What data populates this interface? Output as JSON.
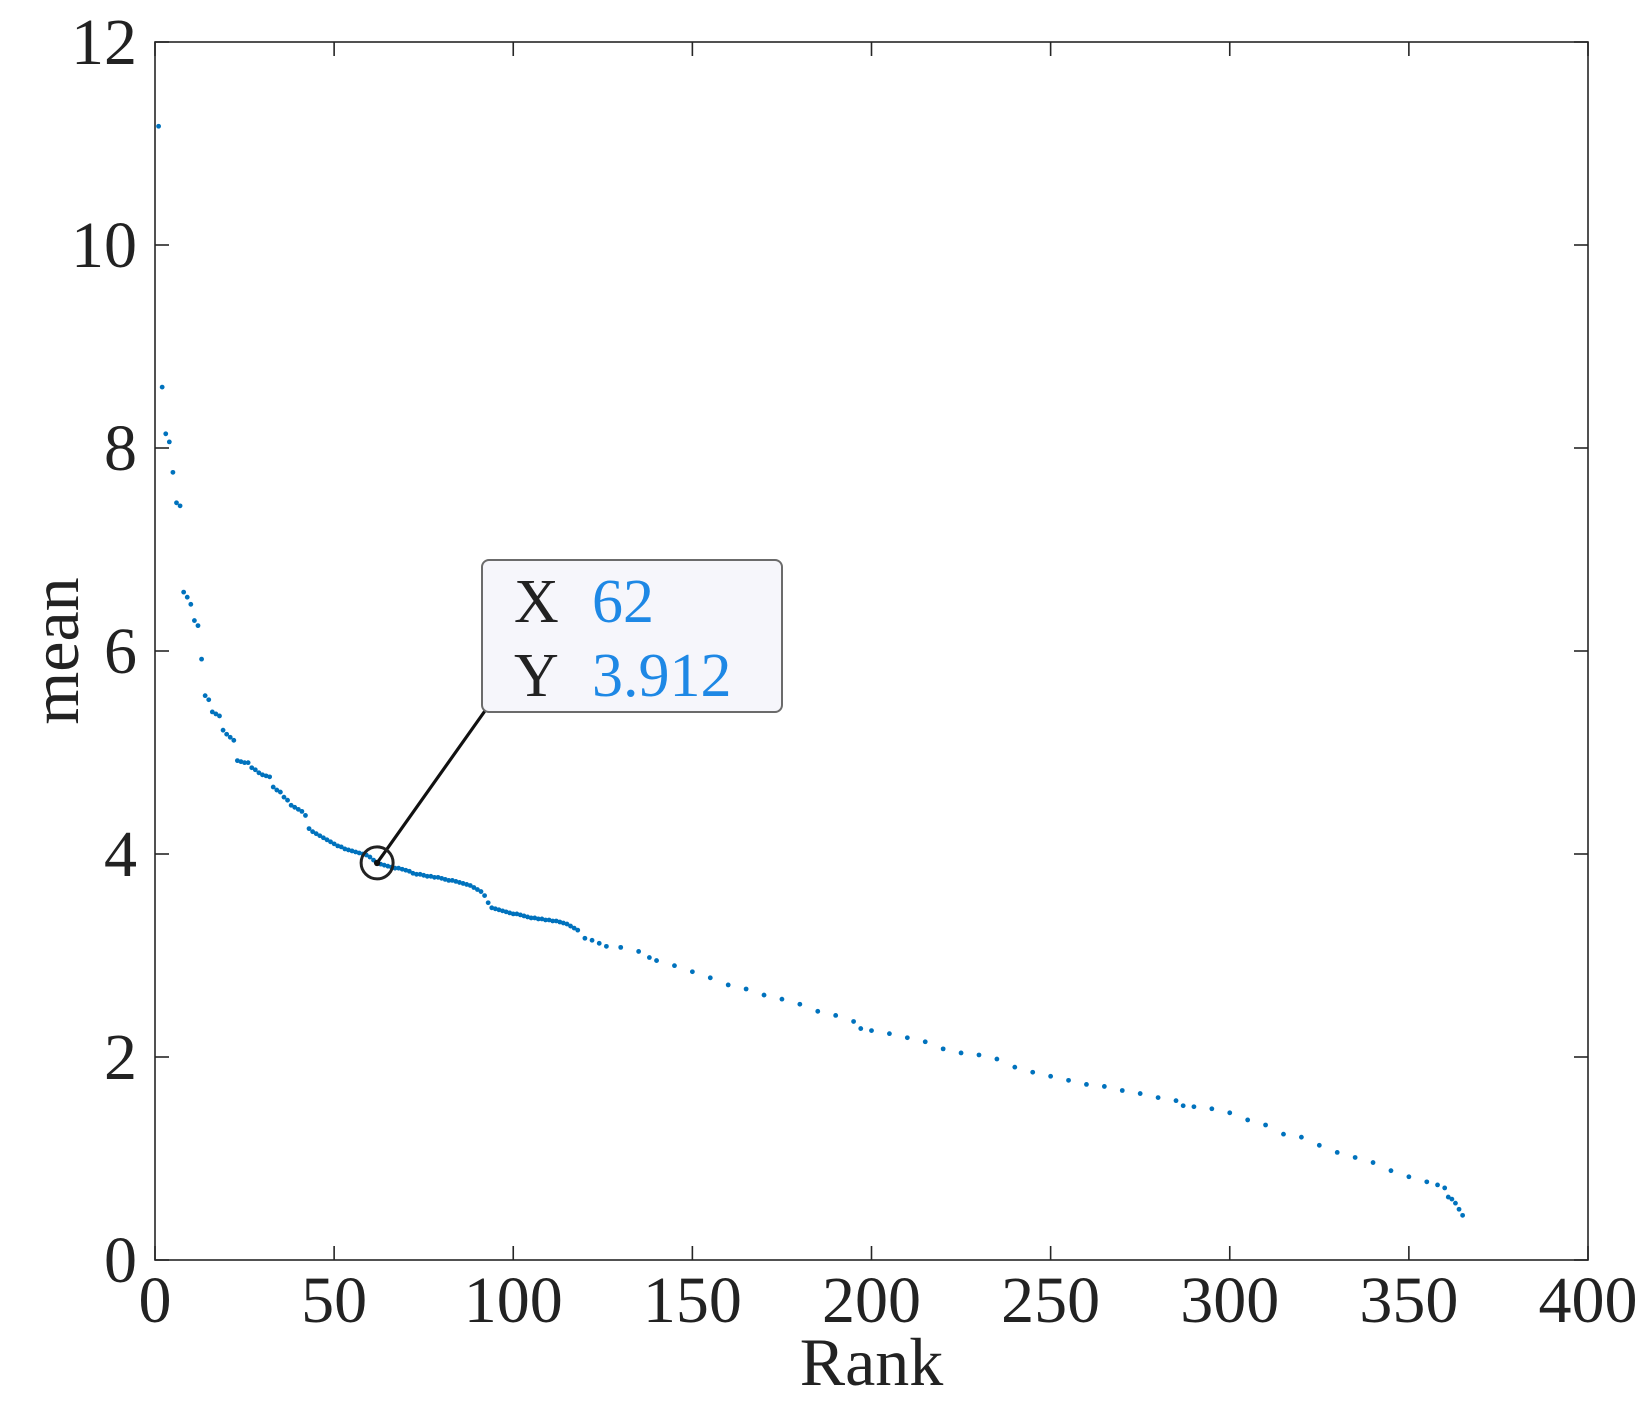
{
  "chart_data": {
    "type": "scatter",
    "title": "",
    "xlabel": "Rank",
    "ylabel": "mean",
    "xlim": [
      0,
      400
    ],
    "ylim": [
      0,
      12
    ],
    "xticks": [
      "0",
      "50",
      "100",
      "150",
      "200",
      "250",
      "300",
      "350",
      "400"
    ],
    "yticks": [
      "0",
      "2",
      "4",
      "6",
      "8",
      "10",
      "12"
    ],
    "grid": false,
    "point_color": "#0072BD",
    "series": [
      {
        "points": [
          [
            1,
            11.17
          ],
          [
            2,
            8.6
          ],
          [
            3,
            8.14
          ],
          [
            4,
            8.06
          ],
          [
            5,
            7.76
          ],
          [
            6,
            7.46
          ],
          [
            7,
            7.43
          ],
          [
            8,
            6.58
          ],
          [
            9,
            6.53
          ],
          [
            10,
            6.46
          ],
          [
            11,
            6.3
          ],
          [
            12,
            6.25
          ],
          [
            13,
            5.92
          ],
          [
            14,
            5.56
          ],
          [
            15,
            5.52
          ],
          [
            16,
            5.4
          ],
          [
            17,
            5.38
          ],
          [
            18,
            5.36
          ],
          [
            19,
            5.22
          ],
          [
            20,
            5.18
          ],
          [
            21,
            5.15
          ],
          [
            22,
            5.12
          ],
          [
            23,
            4.92
          ],
          [
            24,
            4.91
          ],
          [
            25,
            4.9
          ],
          [
            26,
            4.9
          ],
          [
            27,
            4.85
          ],
          [
            28,
            4.83
          ],
          [
            29,
            4.8
          ],
          [
            30,
            4.78
          ],
          [
            31,
            4.77
          ],
          [
            32,
            4.76
          ],
          [
            33,
            4.66
          ],
          [
            34,
            4.63
          ],
          [
            35,
            4.61
          ],
          [
            36,
            4.56
          ],
          [
            37,
            4.53
          ],
          [
            38,
            4.48
          ],
          [
            39,
            4.46
          ],
          [
            40,
            4.44
          ],
          [
            41,
            4.42
          ],
          [
            42,
            4.38
          ],
          [
            43,
            4.25
          ],
          [
            44,
            4.22
          ],
          [
            45,
            4.2
          ],
          [
            46,
            4.18
          ],
          [
            47,
            4.16
          ],
          [
            48,
            4.14
          ],
          [
            49,
            4.12
          ],
          [
            50,
            4.1
          ],
          [
            51,
            4.08
          ],
          [
            52,
            4.07
          ],
          [
            53,
            4.05
          ],
          [
            54,
            4.04
          ],
          [
            55,
            4.03
          ],
          [
            56,
            4.02
          ],
          [
            57,
            4.01
          ],
          [
            58,
            4.0
          ],
          [
            59,
            3.99
          ],
          [
            60,
            3.97
          ],
          [
            61,
            3.94
          ],
          [
            62,
            3.912
          ],
          [
            63,
            3.9
          ],
          [
            64,
            3.89
          ],
          [
            65,
            3.88
          ],
          [
            66,
            3.87
          ],
          [
            67,
            3.86
          ],
          [
            68,
            3.86
          ],
          [
            69,
            3.85
          ],
          [
            70,
            3.84
          ],
          [
            71,
            3.83
          ],
          [
            72,
            3.81
          ],
          [
            73,
            3.8
          ],
          [
            74,
            3.8
          ],
          [
            75,
            3.79
          ],
          [
            76,
            3.78
          ],
          [
            77,
            3.78
          ],
          [
            78,
            3.77
          ],
          [
            79,
            3.77
          ],
          [
            80,
            3.76
          ],
          [
            81,
            3.75
          ],
          [
            82,
            3.74
          ],
          [
            83,
            3.74
          ],
          [
            84,
            3.73
          ],
          [
            85,
            3.72
          ],
          [
            86,
            3.71
          ],
          [
            87,
            3.7
          ],
          [
            88,
            3.69
          ],
          [
            89,
            3.67
          ],
          [
            90,
            3.65
          ],
          [
            91,
            3.63
          ],
          [
            92,
            3.59
          ],
          [
            93,
            3.52
          ],
          [
            94,
            3.47
          ],
          [
            95,
            3.46
          ],
          [
            96,
            3.45
          ],
          [
            97,
            3.44
          ],
          [
            98,
            3.43
          ],
          [
            99,
            3.42
          ],
          [
            100,
            3.41
          ],
          [
            101,
            3.41
          ],
          [
            102,
            3.4
          ],
          [
            103,
            3.39
          ],
          [
            104,
            3.38
          ],
          [
            105,
            3.37
          ],
          [
            106,
            3.37
          ],
          [
            107,
            3.36
          ],
          [
            108,
            3.36
          ],
          [
            109,
            3.35
          ],
          [
            110,
            3.35
          ],
          [
            111,
            3.34
          ],
          [
            112,
            3.34
          ],
          [
            113,
            3.33
          ],
          [
            114,
            3.32
          ],
          [
            115,
            3.31
          ],
          [
            116,
            3.29
          ],
          [
            117,
            3.27
          ],
          [
            118,
            3.25
          ],
          [
            120,
            3.17
          ],
          [
            122,
            3.15
          ],
          [
            124,
            3.12
          ],
          [
            126,
            3.09
          ],
          [
            130,
            3.08
          ],
          [
            135,
            3.04
          ],
          [
            138,
            2.98
          ],
          [
            140,
            2.95
          ],
          [
            145,
            2.9
          ],
          [
            150,
            2.84
          ],
          [
            155,
            2.78
          ],
          [
            160,
            2.71
          ],
          [
            165,
            2.67
          ],
          [
            170,
            2.61
          ],
          [
            175,
            2.57
          ],
          [
            180,
            2.52
          ],
          [
            185,
            2.45
          ],
          [
            190,
            2.41
          ],
          [
            195,
            2.35
          ],
          [
            197,
            2.28
          ],
          [
            200,
            2.26
          ],
          [
            205,
            2.23
          ],
          [
            210,
            2.19
          ],
          [
            215,
            2.15
          ],
          [
            220,
            2.08
          ],
          [
            225,
            2.04
          ],
          [
            230,
            2.02
          ],
          [
            235,
            1.98
          ],
          [
            240,
            1.9
          ],
          [
            245,
            1.85
          ],
          [
            250,
            1.81
          ],
          [
            255,
            1.77
          ],
          [
            260,
            1.73
          ],
          [
            265,
            1.71
          ],
          [
            270,
            1.67
          ],
          [
            275,
            1.64
          ],
          [
            280,
            1.6
          ],
          [
            285,
            1.57
          ],
          [
            287,
            1.52
          ],
          [
            290,
            1.51
          ],
          [
            295,
            1.49
          ],
          [
            300,
            1.45
          ],
          [
            305,
            1.38
          ],
          [
            310,
            1.33
          ],
          [
            315,
            1.24
          ],
          [
            320,
            1.21
          ],
          [
            325,
            1.13
          ],
          [
            330,
            1.06
          ],
          [
            335,
            1.01
          ],
          [
            340,
            0.96
          ],
          [
            345,
            0.88
          ],
          [
            350,
            0.82
          ],
          [
            355,
            0.77
          ],
          [
            358,
            0.74
          ],
          [
            360,
            0.71
          ],
          [
            361,
            0.62
          ],
          [
            362,
            0.6
          ],
          [
            363,
            0.56
          ],
          [
            364,
            0.5
          ],
          [
            365,
            0.44
          ]
        ]
      }
    ],
    "annotation": {
      "type": "datatip",
      "x": 62,
      "y": 3.912,
      "x_key": "X",
      "y_key": "Y",
      "x_text": "62",
      "y_text": "3.912",
      "value_color": "#1E88E5"
    }
  }
}
